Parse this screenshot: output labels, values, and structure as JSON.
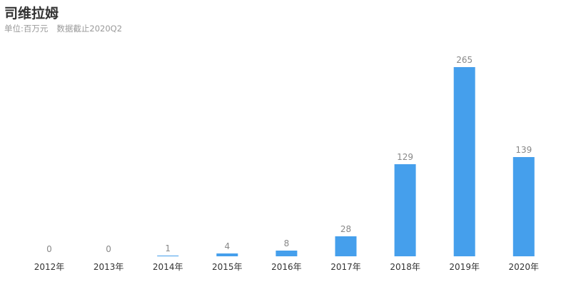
{
  "header": {
    "title": "司维拉姆",
    "unit": "单位:百万元",
    "note": "数据截止2020Q2"
  },
  "chart_data": {
    "type": "bar",
    "categories": [
      "2012年",
      "2013年",
      "2014年",
      "2015年",
      "2016年",
      "2017年",
      "2018年",
      "2019年",
      "2020年"
    ],
    "values": [
      0,
      0,
      1,
      4,
      8,
      28,
      129,
      265,
      139
    ],
    "data_labels": true,
    "ylim": [
      0,
      265
    ],
    "grid": false,
    "bar_color": "#459fec",
    "label_color": "#888888",
    "tick_color": "#333333"
  }
}
